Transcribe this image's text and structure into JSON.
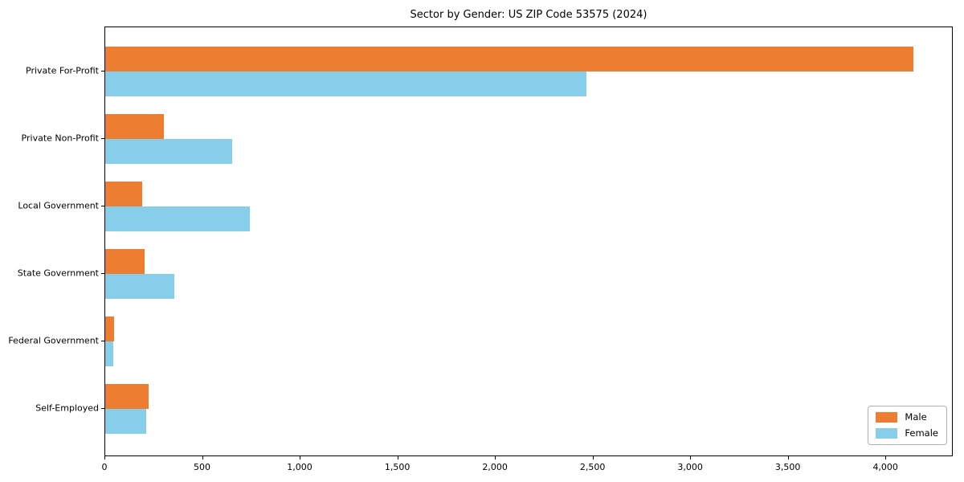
{
  "chart_data": {
    "type": "bar",
    "orientation": "horizontal",
    "title": "Sector by Gender: US ZIP Code 53575 (2024)",
    "xlabel": "",
    "ylabel": "",
    "grid": false,
    "legend_position": "lower right",
    "xlim": [
      0,
      4345
    ],
    "xticks": [
      0,
      500,
      1000,
      1500,
      2000,
      2500,
      3000,
      3500,
      4000
    ],
    "xtick_labels": [
      "0",
      "500",
      "1,000",
      "1,500",
      "2,000",
      "2,500",
      "3,000",
      "3,500",
      "4,000"
    ],
    "categories": [
      "Private For-Profit",
      "Private Non-Profit",
      "Local Government",
      "State Government",
      "Federal Government",
      "Self-Employed"
    ],
    "series": [
      {
        "name": "Male",
        "color": "#ED7D31",
        "values": [
          4140,
          300,
          190,
          200,
          45,
          220
        ]
      },
      {
        "name": "Female",
        "color": "#87CEEB",
        "values": [
          2465,
          650,
          740,
          355,
          42,
          210
        ]
      }
    ]
  }
}
